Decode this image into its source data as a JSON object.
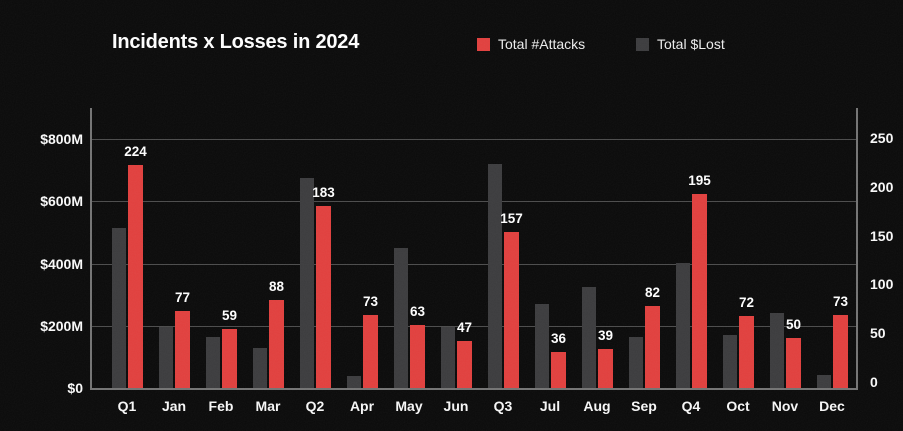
{
  "chart_data": {
    "type": "bar",
    "title": "Incidents x Losses in 2024",
    "categories": [
      "Q1",
      "Jan",
      "Feb",
      "Mar",
      "Q2",
      "Apr",
      "May",
      "Jun",
      "Q3",
      "Jul",
      "Aug",
      "Sep",
      "Q4",
      "Oct",
      "Nov",
      "Dec"
    ],
    "series": [
      {
        "name": "Total #Attacks",
        "color": "#e2403e",
        "axis": "right",
        "values": [
          224,
          77,
          59,
          88,
          183,
          73,
          63,
          47,
          157,
          36,
          39,
          82,
          195,
          72,
          50,
          73
        ],
        "value_labels_shown": true
      },
      {
        "name": "Total $Lost",
        "color": "#3c3c3e",
        "axis": "left",
        "unit": "$M",
        "values": [
          515,
          195,
          165,
          130,
          675,
          40,
          450,
          195,
          720,
          270,
          325,
          165,
          400,
          170,
          240,
          42
        ],
        "value_labels_shown": false
      }
    ],
    "left_axis": {
      "tick_labels": [
        "$0",
        "$200M",
        "$400M",
        "$600M",
        "$800M"
      ],
      "tick_values": [
        0,
        200,
        400,
        600,
        800
      ],
      "range": [
        0,
        800
      ]
    },
    "right_axis": {
      "tick_labels": [
        "0",
        "50",
        "100",
        "150",
        "200",
        "250"
      ],
      "tick_values": [
        0,
        50,
        100,
        150,
        200,
        250
      ],
      "range": [
        0,
        250
      ]
    },
    "grid": "horizontal",
    "legend_position": "top",
    "background_color": "#0a0a0a",
    "text_color": "#ffffff"
  }
}
